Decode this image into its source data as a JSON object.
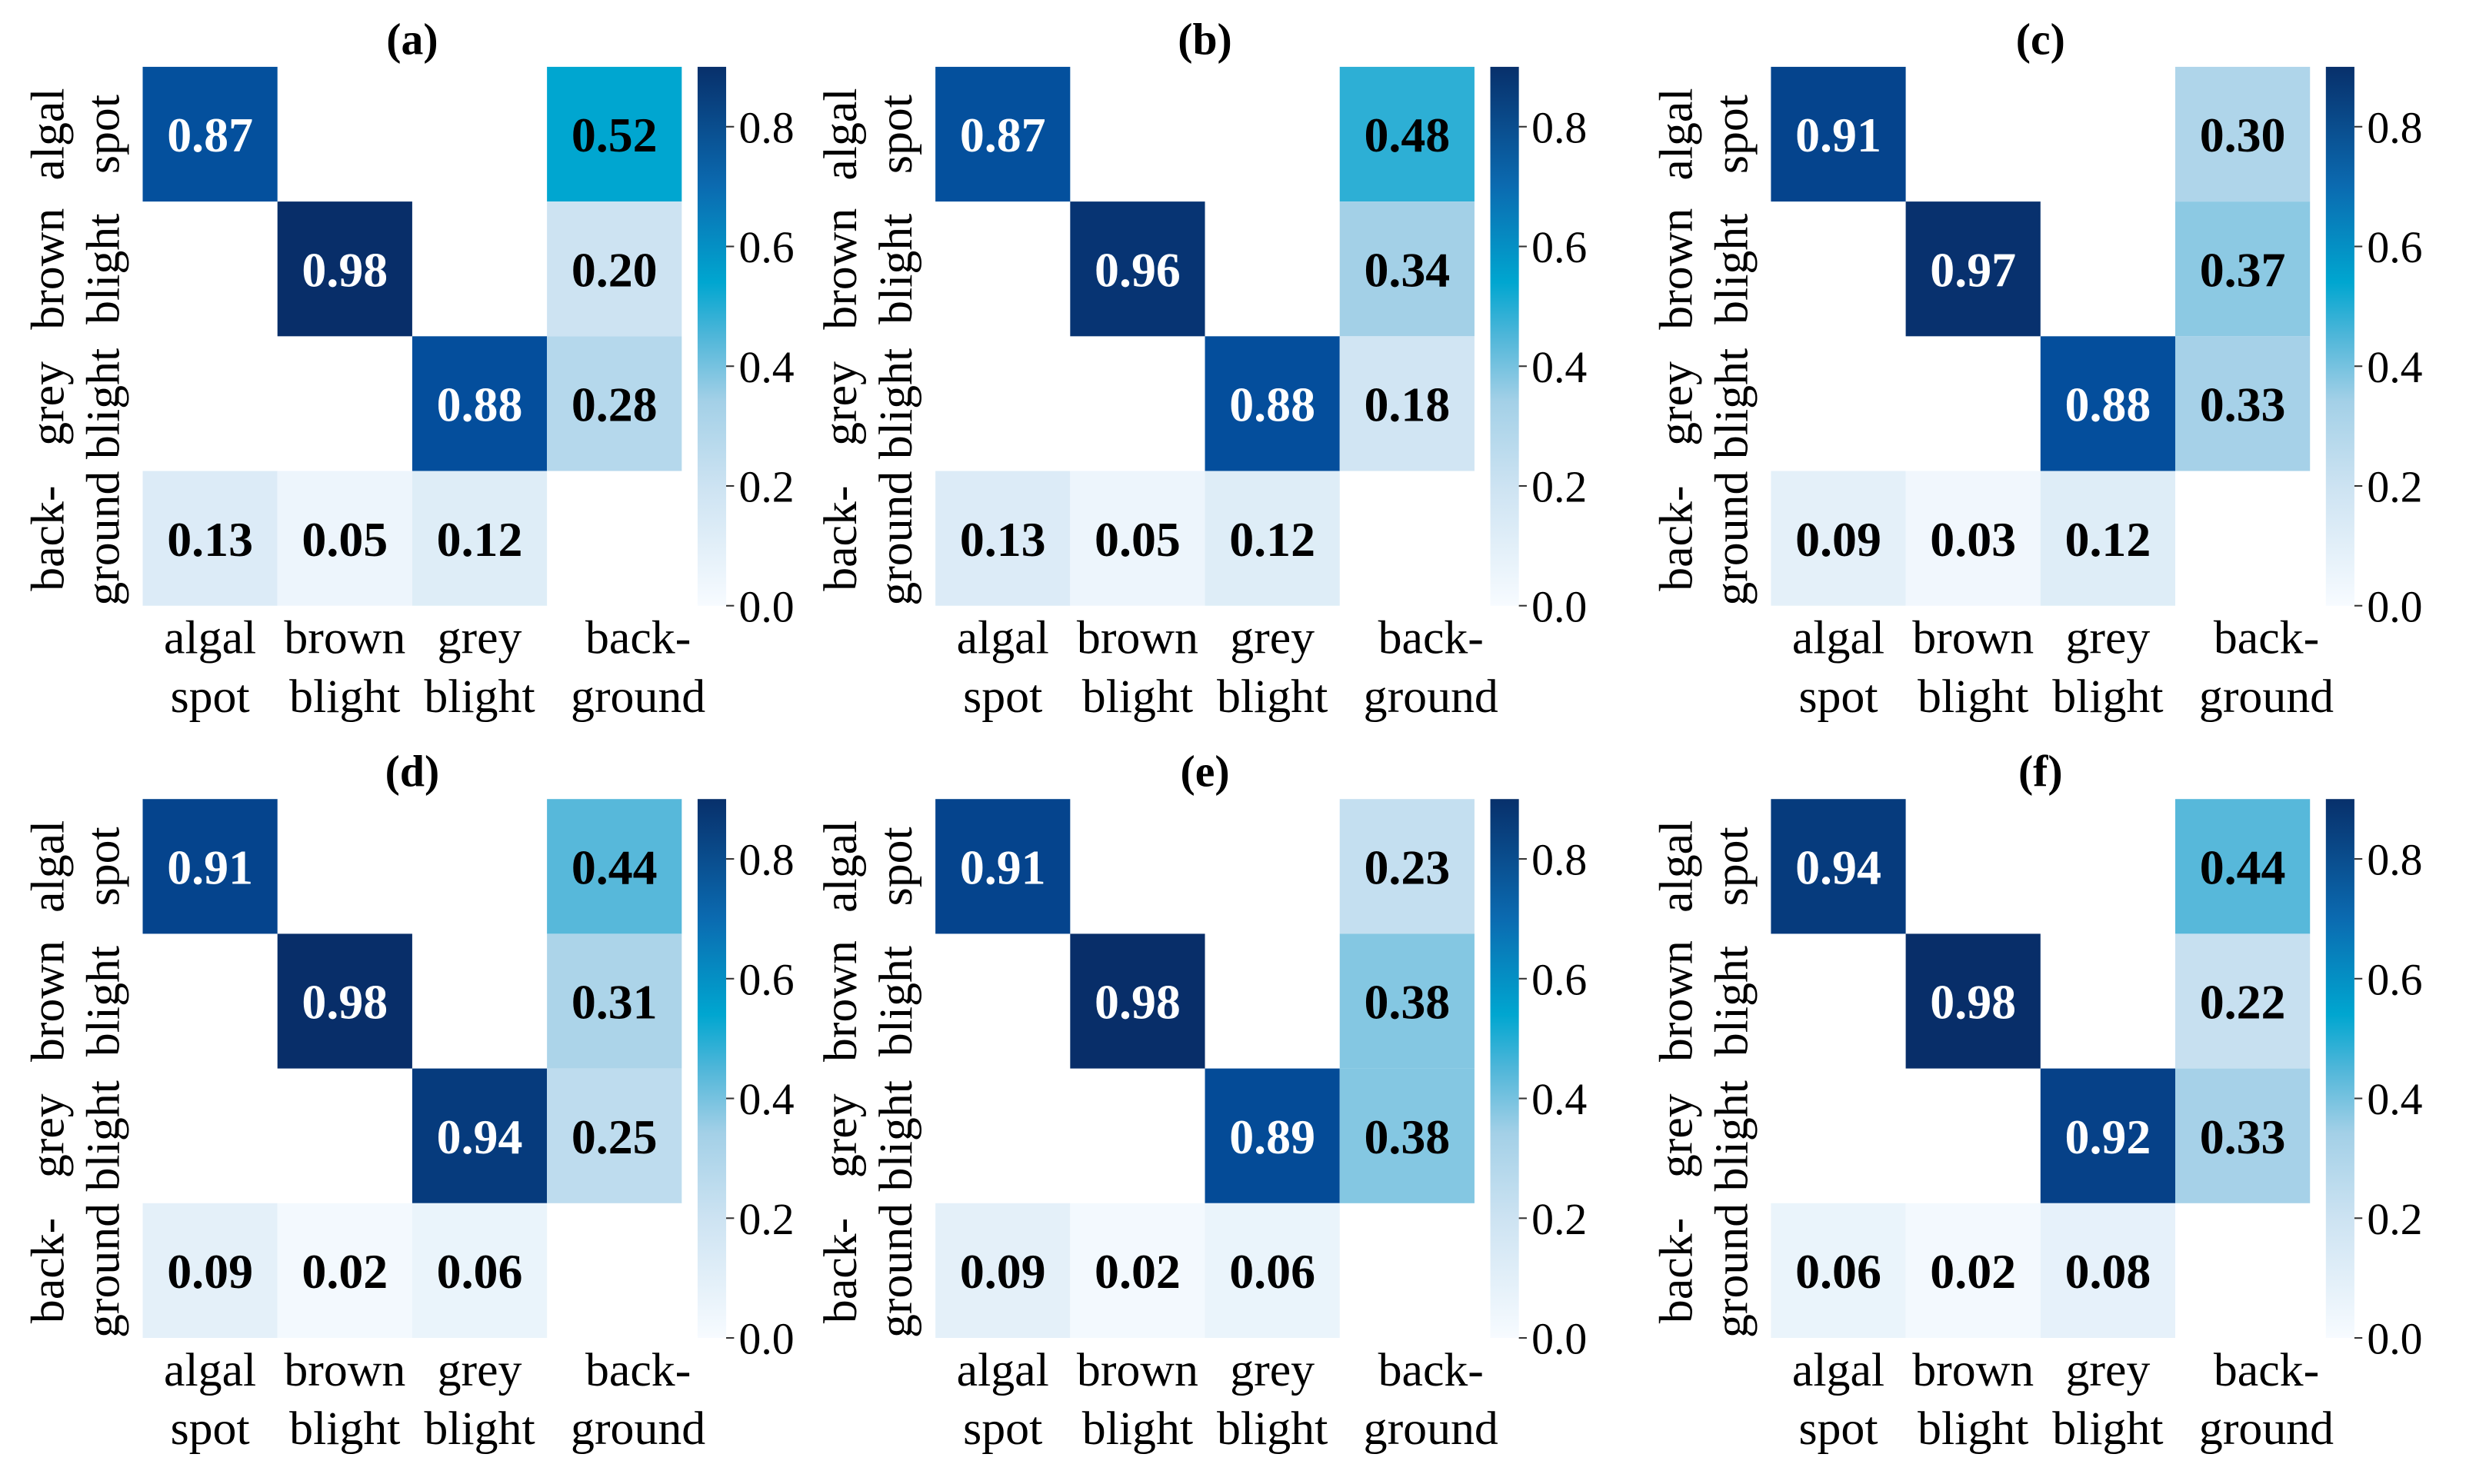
{
  "chart_data": {
    "type": "heatmap",
    "row_labels": [
      [
        "algal",
        "spot"
      ],
      [
        "brown",
        "blight"
      ],
      [
        "grey",
        "blight"
      ],
      [
        "back-",
        "ground"
      ]
    ],
    "col_labels": [
      [
        "algal",
        "spot"
      ],
      [
        "brown",
        "blight"
      ],
      [
        "grey",
        "blight"
      ],
      [
        "back-",
        "ground"
      ]
    ],
    "colorbar": {
      "ticks": [
        "0.0",
        "0.2",
        "0.4",
        "0.6",
        "0.8"
      ],
      "tick_values": [
        0,
        0.2,
        0.4,
        0.6,
        0.8
      ],
      "range": [
        0,
        0.9
      ]
    },
    "panels": [
      {
        "title": "(a)",
        "matrix": [
          [
            0.87,
            null,
            null,
            0.52
          ],
          [
            null,
            0.98,
            null,
            0.2
          ],
          [
            null,
            null,
            0.88,
            0.28
          ],
          [
            0.13,
            0.05,
            0.12,
            null
          ]
        ]
      },
      {
        "title": "(b)",
        "matrix": [
          [
            0.87,
            null,
            null,
            0.48
          ],
          [
            null,
            0.96,
            null,
            0.34
          ],
          [
            null,
            null,
            0.88,
            0.18
          ],
          [
            0.13,
            0.05,
            0.12,
            null
          ]
        ]
      },
      {
        "title": "(c)",
        "matrix": [
          [
            0.91,
            null,
            null,
            0.3
          ],
          [
            null,
            0.97,
            null,
            0.37
          ],
          [
            null,
            null,
            0.88,
            0.33
          ],
          [
            0.09,
            0.03,
            0.12,
            null
          ]
        ]
      },
      {
        "title": "(d)",
        "matrix": [
          [
            0.91,
            null,
            null,
            0.44
          ],
          [
            null,
            0.98,
            null,
            0.31
          ],
          [
            null,
            null,
            0.94,
            0.25
          ],
          [
            0.09,
            0.02,
            0.06,
            null
          ]
        ]
      },
      {
        "title": "(e)",
        "matrix": [
          [
            0.91,
            null,
            null,
            0.23
          ],
          [
            null,
            0.98,
            null,
            0.38
          ],
          [
            null,
            null,
            0.89,
            0.38
          ],
          [
            0.09,
            0.02,
            0.06,
            null
          ]
        ]
      },
      {
        "title": "(f)",
        "matrix": [
          [
            0.94,
            null,
            null,
            0.44
          ],
          [
            null,
            0.98,
            null,
            0.22
          ],
          [
            null,
            null,
            0.92,
            0.33
          ],
          [
            0.06,
            0.02,
            0.08,
            null
          ]
        ]
      }
    ],
    "colors": {
      "low": "#f7fbff",
      "mid": "#00a6d0",
      "high": "#08306b"
    }
  }
}
